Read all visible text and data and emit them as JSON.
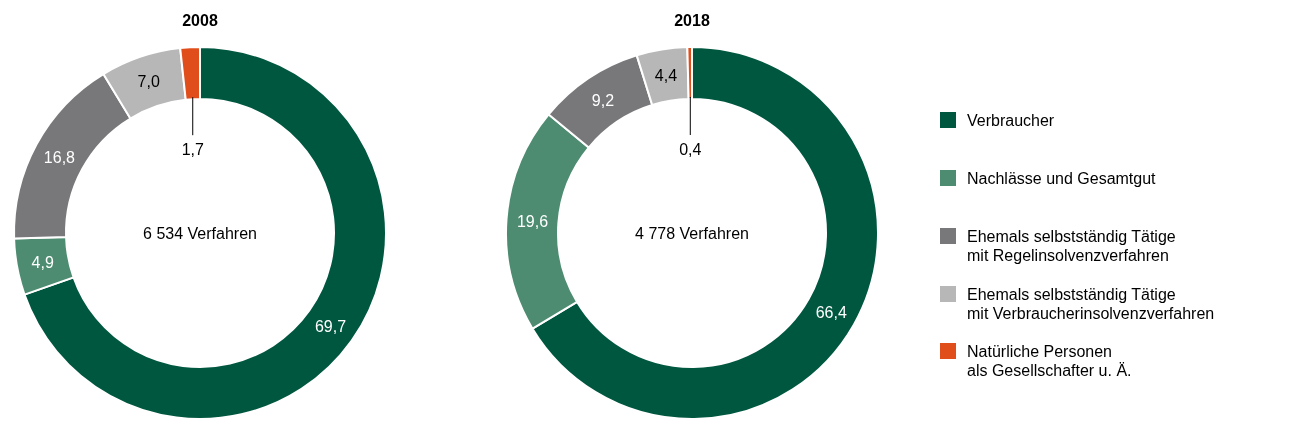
{
  "chart_data": [
    {
      "type": "donut",
      "title": "2008",
      "categories": [
        "Verbraucher",
        "Nachlässe und Gesamtgut",
        "Ehemals selbstständig Tätige\nmit Regelinsolvenzverfahren",
        "Ehemals selbstständig Tätige\nmit Verbraucherinsolvenzverfahren",
        "Natürliche Personen\nals Gesellschafter u. Ä."
      ],
      "values": [
        69.7,
        4.9,
        16.8,
        7.0,
        1.7
      ],
      "value_labels": [
        "69,7",
        "4,9",
        "16,8",
        "7,0",
        "1,7"
      ],
      "colors": [
        "#00573f",
        "#4e8c72",
        "#78787a",
        "#b7b7b7",
        "#e04e1c"
      ],
      "annotations": [
        "6 534 Verfahren"
      ],
      "legend": "right"
    },
    {
      "type": "donut",
      "title": "2018",
      "categories": [
        null,
        null,
        null,
        null,
        null
      ],
      "values": [
        66.4,
        19.6,
        9.2,
        4.4,
        0.4
      ],
      "value_labels": [
        "66,4",
        "19,6",
        "9,2",
        "4,4",
        "0,4"
      ],
      "colors": [
        "#00573f",
        "#4e8c72",
        "#78787a",
        "#b7b7b7",
        "#e04e1c"
      ],
      "annotations": [
        "4 778 Verfahren"
      ]
    }
  ]
}
